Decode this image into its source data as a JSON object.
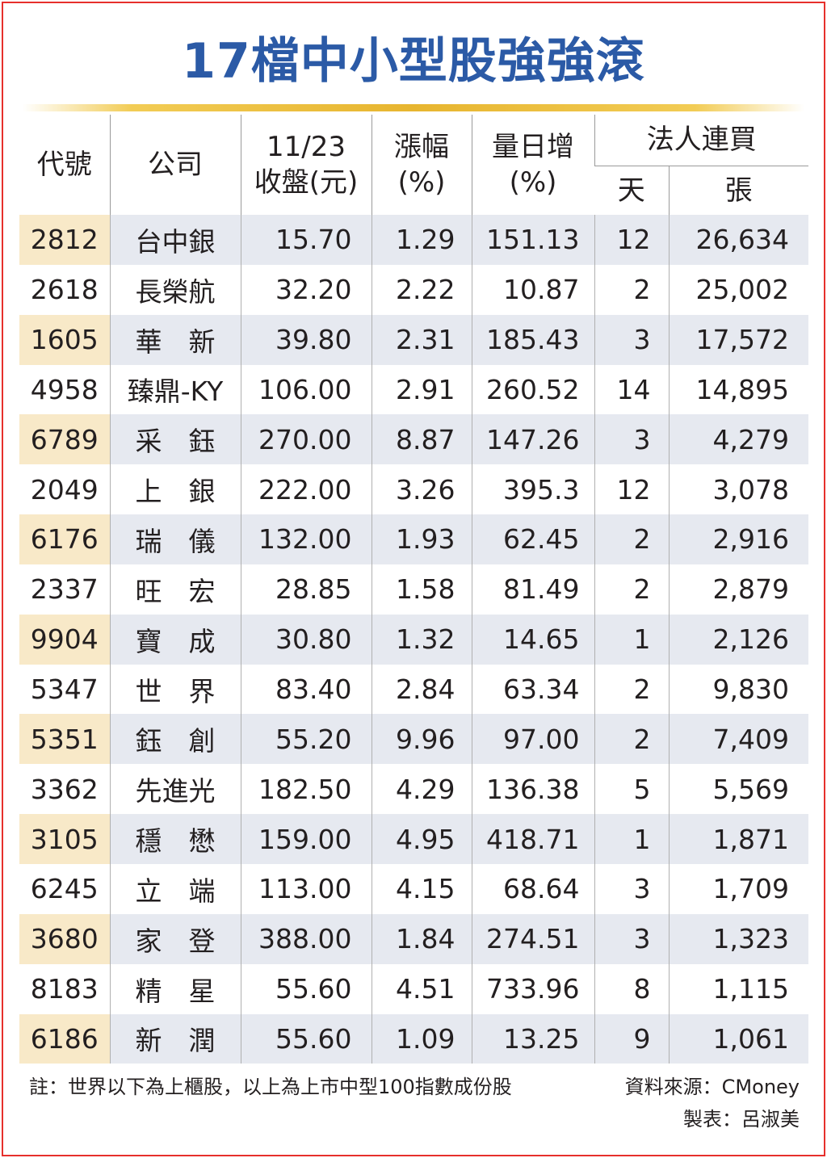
{
  "title": "17檔中小型股強強滾",
  "headers": {
    "code": "代號",
    "company": "公司",
    "close_date": "11/23",
    "close_label": "收盤(元)",
    "change_label": "漲幅",
    "change_unit": "(%)",
    "volume_label": "量日增",
    "volume_unit": "(%)",
    "inst_label": "法人連買",
    "days": "天",
    "lots": "張"
  },
  "rows": [
    {
      "code": "2812",
      "company": "台中銀",
      "close": "15.70",
      "change": "1.29",
      "vol": "151.13",
      "days": "12",
      "lots": "26,634"
    },
    {
      "code": "2618",
      "company": "長榮航",
      "close": "32.20",
      "change": "2.22",
      "vol": "10.87",
      "days": "2",
      "lots": "25,002"
    },
    {
      "code": "1605",
      "company": "華　新",
      "close": "39.80",
      "change": "2.31",
      "vol": "185.43",
      "days": "3",
      "lots": "17,572"
    },
    {
      "code": "4958",
      "company": "臻鼎-KY",
      "close": "106.00",
      "change": "2.91",
      "vol": "260.52",
      "days": "14",
      "lots": "14,895"
    },
    {
      "code": "6789",
      "company": "采　鈺",
      "close": "270.00",
      "change": "8.87",
      "vol": "147.26",
      "days": "3",
      "lots": "4,279"
    },
    {
      "code": "2049",
      "company": "上　銀",
      "close": "222.00",
      "change": "3.26",
      "vol": "395.3",
      "days": "12",
      "lots": "3,078"
    },
    {
      "code": "6176",
      "company": "瑞　儀",
      "close": "132.00",
      "change": "1.93",
      "vol": "62.45",
      "days": "2",
      "lots": "2,916"
    },
    {
      "code": "2337",
      "company": "旺　宏",
      "close": "28.85",
      "change": "1.58",
      "vol": "81.49",
      "days": "2",
      "lots": "2,879"
    },
    {
      "code": "9904",
      "company": "寶　成",
      "close": "30.80",
      "change": "1.32",
      "vol": "14.65",
      "days": "1",
      "lots": "2,126"
    },
    {
      "code": "5347",
      "company": "世　界",
      "close": "83.40",
      "change": "2.84",
      "vol": "63.34",
      "days": "2",
      "lots": "9,830"
    },
    {
      "code": "5351",
      "company": "鈺　創",
      "close": "55.20",
      "change": "9.96",
      "vol": "97.00",
      "days": "2",
      "lots": "7,409"
    },
    {
      "code": "3362",
      "company": "先進光",
      "close": "182.50",
      "change": "4.29",
      "vol": "136.38",
      "days": "5",
      "lots": "5,569"
    },
    {
      "code": "3105",
      "company": "穩　懋",
      "close": "159.00",
      "change": "4.95",
      "vol": "418.71",
      "days": "1",
      "lots": "1,871"
    },
    {
      "code": "6245",
      "company": "立　端",
      "close": "113.00",
      "change": "4.15",
      "vol": "68.64",
      "days": "3",
      "lots": "1,709"
    },
    {
      "code": "3680",
      "company": "家　登",
      "close": "388.00",
      "change": "1.84",
      "vol": "274.51",
      "days": "3",
      "lots": "1,323"
    },
    {
      "code": "8183",
      "company": "精　星",
      "close": "55.60",
      "change": "4.51",
      "vol": "733.96",
      "days": "8",
      "lots": "1,115"
    },
    {
      "code": "6186",
      "company": "新　潤",
      "close": "55.60",
      "change": "1.09",
      "vol": "13.25",
      "days": "9",
      "lots": "1,061"
    }
  ],
  "note": "註：世界以下為上櫃股，以上為上市中型100指數成份股",
  "source": "資料來源：CMoney",
  "maker": "製表：呂淑美"
}
